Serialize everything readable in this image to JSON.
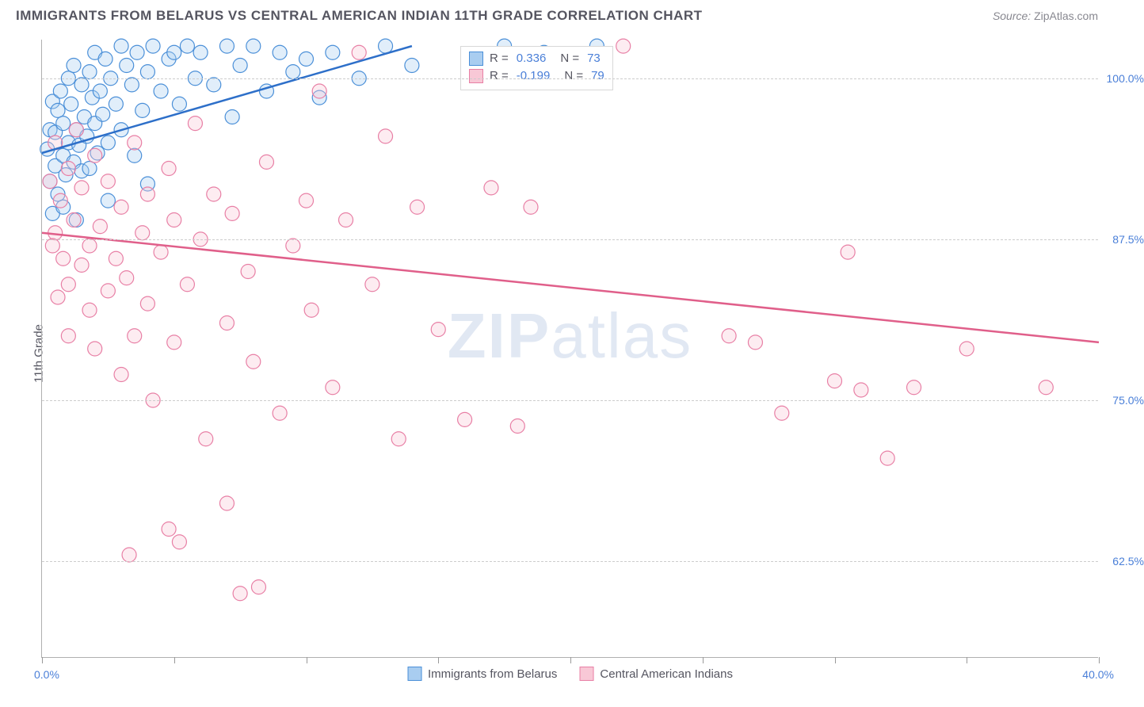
{
  "title": "IMMIGRANTS FROM BELARUS VS CENTRAL AMERICAN INDIAN 11TH GRADE CORRELATION CHART",
  "source_prefix": "Source: ",
  "source_name": "ZipAtlas.com",
  "watermark_a": "ZIP",
  "watermark_b": "atlas",
  "y_axis_label": "11th Grade",
  "chart": {
    "type": "scatter-with-regression",
    "xlim": [
      0,
      40
    ],
    "ylim": [
      55,
      103
    ],
    "x_min_label": "0.0%",
    "x_max_label": "40.0%",
    "y_ticks": [
      62.5,
      75.0,
      87.5,
      100.0
    ],
    "y_tick_labels": [
      "62.5%",
      "75.0%",
      "87.5%",
      "100.0%"
    ],
    "x_ticks": [
      0,
      5,
      10,
      15,
      20,
      25,
      30,
      35,
      40
    ],
    "grid_color": "#cccccc",
    "background_color": "#ffffff",
    "point_radius": 9,
    "point_opacity": 0.35,
    "line_width": 2.5,
    "series": [
      {
        "name": "Immigrants from Belarus",
        "color_fill": "#a9cdf0",
        "color_stroke": "#4a8fd8",
        "line_color": "#2d6fc9",
        "R_label": "R = ",
        "R": "0.336",
        "N_label": "N = ",
        "N": "73",
        "regression": {
          "x1": 0,
          "y1": 94.2,
          "x2": 14.0,
          "y2": 102.5
        },
        "points": [
          [
            0.2,
            94.5
          ],
          [
            0.3,
            96.0
          ],
          [
            0.3,
            92.0
          ],
          [
            0.4,
            98.2
          ],
          [
            0.5,
            93.2
          ],
          [
            0.5,
            95.8
          ],
          [
            0.6,
            97.5
          ],
          [
            0.6,
            91.0
          ],
          [
            0.7,
            99.0
          ],
          [
            0.8,
            94.0
          ],
          [
            0.8,
            96.5
          ],
          [
            0.9,
            92.5
          ],
          [
            1.0,
            100.0
          ],
          [
            1.0,
            95.0
          ],
          [
            1.1,
            98.0
          ],
          [
            1.2,
            93.5
          ],
          [
            1.2,
            101.0
          ],
          [
            1.3,
            96.0
          ],
          [
            1.4,
            94.8
          ],
          [
            1.5,
            99.5
          ],
          [
            1.5,
            92.8
          ],
          [
            1.6,
            97.0
          ],
          [
            1.7,
            95.5
          ],
          [
            1.8,
            100.5
          ],
          [
            1.8,
            93.0
          ],
          [
            1.9,
            98.5
          ],
          [
            2.0,
            96.5
          ],
          [
            2.0,
            102.0
          ],
          [
            2.1,
            94.2
          ],
          [
            2.2,
            99.0
          ],
          [
            2.3,
            97.2
          ],
          [
            2.4,
            101.5
          ],
          [
            2.5,
            95.0
          ],
          [
            2.5,
            90.5
          ],
          [
            2.6,
            100.0
          ],
          [
            2.8,
            98.0
          ],
          [
            3.0,
            102.5
          ],
          [
            3.0,
            96.0
          ],
          [
            3.2,
            101.0
          ],
          [
            3.4,
            99.5
          ],
          [
            3.5,
            94.0
          ],
          [
            3.6,
            102.0
          ],
          [
            3.8,
            97.5
          ],
          [
            4.0,
            100.5
          ],
          [
            4.0,
            91.8
          ],
          [
            4.2,
            102.5
          ],
          [
            4.5,
            99.0
          ],
          [
            4.8,
            101.5
          ],
          [
            5.0,
            102.0
          ],
          [
            5.2,
            98.0
          ],
          [
            5.5,
            102.5
          ],
          [
            5.8,
            100.0
          ],
          [
            6.0,
            102.0
          ],
          [
            6.5,
            99.5
          ],
          [
            7.0,
            102.5
          ],
          [
            7.2,
            97.0
          ],
          [
            7.5,
            101.0
          ],
          [
            8.0,
            102.5
          ],
          [
            8.5,
            99.0
          ],
          [
            9.0,
            102.0
          ],
          [
            9.5,
            100.5
          ],
          [
            10.0,
            101.5
          ],
          [
            10.5,
            98.5
          ],
          [
            11.0,
            102.0
          ],
          [
            12.0,
            100.0
          ],
          [
            13.0,
            102.5
          ],
          [
            14.0,
            101.0
          ],
          [
            17.5,
            102.5
          ],
          [
            19.0,
            102.0
          ],
          [
            21.0,
            102.5
          ],
          [
            0.4,
            89.5
          ],
          [
            1.3,
            89.0
          ],
          [
            0.8,
            90.0
          ]
        ]
      },
      {
        "name": "Central American Indians",
        "color_fill": "#f8c8d6",
        "color_stroke": "#e87fa5",
        "line_color": "#e05f8a",
        "R_label": "R = ",
        "R": "-0.199",
        "N_label": "N = ",
        "N": "79",
        "regression": {
          "x1": 0,
          "y1": 88.0,
          "x2": 40.0,
          "y2": 79.5
        },
        "points": [
          [
            0.3,
            92.0
          ],
          [
            0.5,
            88.0
          ],
          [
            0.5,
            95.0
          ],
          [
            0.7,
            90.5
          ],
          [
            0.8,
            86.0
          ],
          [
            1.0,
            93.0
          ],
          [
            1.0,
            84.0
          ],
          [
            1.2,
            89.0
          ],
          [
            1.3,
            96.0
          ],
          [
            1.5,
            85.5
          ],
          [
            1.5,
            91.5
          ],
          [
            1.8,
            87.0
          ],
          [
            1.8,
            82.0
          ],
          [
            2.0,
            94.0
          ],
          [
            2.0,
            79.0
          ],
          [
            2.2,
            88.5
          ],
          [
            2.5,
            83.5
          ],
          [
            2.5,
            92.0
          ],
          [
            2.8,
            86.0
          ],
          [
            3.0,
            90.0
          ],
          [
            3.0,
            77.0
          ],
          [
            3.2,
            84.5
          ],
          [
            3.5,
            95.0
          ],
          [
            3.5,
            80.0
          ],
          [
            3.8,
            88.0
          ],
          [
            4.0,
            82.5
          ],
          [
            4.0,
            91.0
          ],
          [
            4.2,
            75.0
          ],
          [
            4.5,
            86.5
          ],
          [
            4.8,
            93.0
          ],
          [
            5.0,
            79.5
          ],
          [
            5.0,
            89.0
          ],
          [
            5.2,
            64.0
          ],
          [
            5.5,
            84.0
          ],
          [
            5.8,
            96.5
          ],
          [
            6.0,
            87.5
          ],
          [
            6.2,
            72.0
          ],
          [
            6.5,
            91.0
          ],
          [
            7.0,
            81.0
          ],
          [
            7.0,
            67.0
          ],
          [
            7.2,
            89.5
          ],
          [
            7.5,
            60.0
          ],
          [
            7.8,
            85.0
          ],
          [
            8.0,
            78.0
          ],
          [
            8.2,
            60.5
          ],
          [
            8.5,
            93.5
          ],
          [
            9.0,
            74.0
          ],
          [
            9.5,
            87.0
          ],
          [
            10.0,
            90.5
          ],
          [
            10.2,
            82.0
          ],
          [
            10.5,
            99.0
          ],
          [
            11.0,
            76.0
          ],
          [
            11.5,
            89.0
          ],
          [
            12.0,
            102.0
          ],
          [
            12.5,
            84.0
          ],
          [
            13.0,
            95.5
          ],
          [
            13.5,
            72.0
          ],
          [
            14.2,
            90.0
          ],
          [
            15.0,
            80.5
          ],
          [
            16.0,
            73.5
          ],
          [
            17.0,
            91.5
          ],
          [
            18.0,
            73.0
          ],
          [
            18.5,
            90.0
          ],
          [
            22.0,
            102.5
          ],
          [
            26.0,
            80.0
          ],
          [
            27.0,
            79.5
          ],
          [
            28.0,
            74.0
          ],
          [
            30.0,
            76.5
          ],
          [
            30.5,
            86.5
          ],
          [
            31.0,
            75.8
          ],
          [
            32.0,
            70.5
          ],
          [
            33.0,
            76.0
          ],
          [
            35.0,
            79.0
          ],
          [
            38.0,
            76.0
          ],
          [
            3.3,
            63.0
          ],
          [
            4.8,
            65.0
          ],
          [
            1.0,
            80.0
          ],
          [
            0.6,
            83.0
          ],
          [
            0.4,
            87.0
          ]
        ]
      }
    ]
  }
}
